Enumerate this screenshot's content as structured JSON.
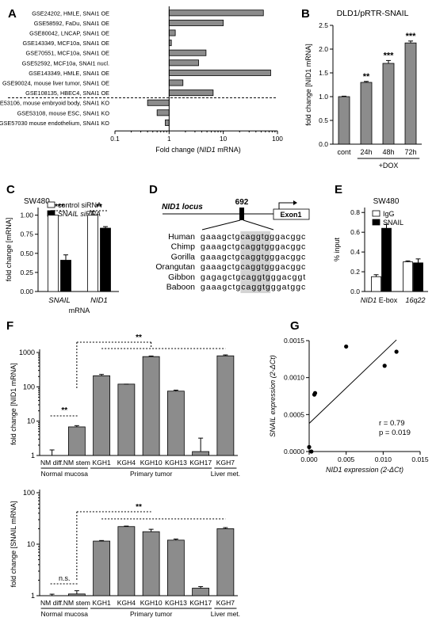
{
  "colors": {
    "gray_bar": "#8c8c8c",
    "black_bar": "#000000",
    "white_bar": "#ffffff",
    "highlight": "#d4d4d4"
  },
  "chart_data": [
    {
      "panel": "A",
      "type": "bar",
      "orientation": "horizontal",
      "scale": "log",
      "categories": [
        "GSE24202, HMLE, SNAI1 OE",
        "GSE58592, FaDu, SNAI1 OE",
        "GSE80042, LNCAP, SNAI1 OE",
        "GSE143349, MCF10a, SNAI1 OE",
        "GSE70551, MCF10a, SNAI1 OE",
        "GSE52592, MCF10a, SNAI1 nucl.",
        "GSE143349, HMLE, SNAI1 OE",
        "GSE90024, mouse liver tumor, SNAI1 OE",
        "GSE108135, HBEC4, SNAI1 OE",
        "GSE53106, mouse embryoid body, SNAI1 KO",
        "GSE53108, mouse ESC, SNAI1 KO",
        "GSE57030 mouse endothelium, SNAI1 KO"
      ],
      "values": [
        55,
        10,
        1.3,
        1.1,
        4.8,
        3.5,
        75,
        1.8,
        6.5,
        0.4,
        0.6,
        0.85
      ],
      "xlabel_pre": "Fold change (",
      "xlabel_italic": "NID1",
      "xlabel_post": " mRNA)",
      "xticks": [
        "0.1",
        "1",
        "10",
        "100"
      ],
      "xlim": [
        0.1,
        100
      ]
    },
    {
      "panel": "B",
      "type": "bar",
      "title": "DLD1/pRTR-SNAIL",
      "categories": [
        "cont",
        "24h",
        "48h",
        "72h"
      ],
      "values": [
        1.0,
        1.3,
        1.7,
        2.13
      ],
      "errors": [
        0.01,
        0.02,
        0.06,
        0.04
      ],
      "significance": [
        "",
        "**",
        "***",
        "***"
      ],
      "group_label": "+DOX",
      "ylabel": "fold change [NID1 mRNA]",
      "ylim": [
        0,
        2.5
      ],
      "yticks": [
        "0.0",
        "0.5",
        "1.0",
        "1.5",
        "2.0",
        "2.5"
      ]
    },
    {
      "panel": "C",
      "type": "bar",
      "title": "SW480",
      "categories": [
        "SNAIL",
        "NID1"
      ],
      "category_label": "mRNA",
      "series": [
        {
          "name": "control siRNA",
          "values": [
            1.0,
            1.0
          ],
          "errors": [
            0.06,
            0.05
          ]
        },
        {
          "name": "SNAIL siRNA",
          "values": [
            0.41,
            0.83
          ],
          "errors": [
            0.07,
            0.02
          ]
        }
      ],
      "significance": [
        "***",
        "**"
      ],
      "ylabel": "fold change [mRNA]",
      "ylim": [
        0,
        1.1
      ],
      "yticks": [
        "0.00",
        "0.25",
        "0.50",
        "0.75",
        "1.00"
      ]
    },
    {
      "panel": "E",
      "type": "bar",
      "title": "SW480",
      "categories": [
        "NID1 E-box",
        "16q22"
      ],
      "series": [
        {
          "name": "IgG",
          "values": [
            0.15,
            0.3
          ],
          "errors": [
            0.02,
            0.01
          ]
        },
        {
          "name": "SNAIL",
          "values": [
            0.64,
            0.29
          ],
          "errors": [
            0.04,
            0.04
          ]
        }
      ],
      "ylabel": "% input",
      "ylim": [
        0,
        0.85
      ],
      "yticks": [
        "0.0",
        "0.2",
        "0.4",
        "0.6",
        "0.8"
      ]
    },
    {
      "panel": "F-top",
      "type": "bar",
      "scale": "log",
      "categories": [
        "NM diff.",
        "NM stem",
        "KGH1",
        "KGH4",
        "KGH10",
        "KGH13",
        "KGH17",
        "KGH7"
      ],
      "values": [
        1.0,
        6.8,
        210,
        120,
        760,
        75,
        1.3,
        800
      ],
      "errors_up": [
        1.45,
        7.4,
        230,
        120,
        790,
        80,
        3.2,
        850
      ],
      "groups": [
        "Normal mucosa",
        "Primary tumor",
        "Liver met."
      ],
      "significance": [
        "**",
        "**"
      ],
      "ylabel": "fold change [NID1 mRNA]",
      "ylim": [
        1,
        1000
      ],
      "yticks": [
        "1",
        "10",
        "100",
        "1000"
      ]
    },
    {
      "panel": "F-bottom",
      "type": "bar",
      "scale": "log",
      "categories": [
        "NM diff.",
        "NM stem",
        "KGH1",
        "KGH4",
        "KGH10",
        "KGH13",
        "KGH17",
        "KGH7"
      ],
      "values": [
        1.0,
        1.08,
        11.5,
        22,
        17.5,
        12,
        1.4,
        20
      ],
      "errors_up": [
        1.07,
        1.25,
        11.8,
        22.5,
        19.5,
        12.6,
        1.5,
        21
      ],
      "groups": [
        "Normal mucosa",
        "Primary tumor",
        "Liver met."
      ],
      "significance": [
        "n.s.",
        "**"
      ],
      "ylabel": "fold change [SNAIL mRNA]",
      "ylim": [
        1,
        100
      ],
      "yticks": [
        "1",
        "10",
        "100"
      ]
    },
    {
      "panel": "G",
      "type": "scatter",
      "x": [
        0.0,
        0.0003,
        0.0007,
        0.0008,
        0.005,
        0.0102,
        0.0118
      ],
      "y": [
        6e-05,
        0.0,
        0.00077,
        0.00079,
        0.00142,
        0.00116,
        0.00135
      ],
      "fit_line": {
        "x": [
          0.0,
          0.0118
        ],
        "y": [
          0.00038,
          0.00151
        ]
      },
      "annotations": [
        "r = 0.79",
        "p = 0.019"
      ],
      "xlabel": "NID1 expression (2-ΔCt)",
      "ylabel": "SNAIL expression (2-ΔCt)",
      "xlim": [
        0,
        0.015
      ],
      "ylim": [
        0,
        0.0015
      ],
      "xticks": [
        "0.000",
        "0.005",
        "0.010",
        "0.015"
      ],
      "yticks": [
        "0.0000",
        "0.0005",
        "0.0010",
        "0.0015"
      ]
    }
  ],
  "panelD": {
    "locus_label": "NID1 locus",
    "position_label": "692",
    "exon_label": "Exon1",
    "sequences": [
      {
        "species": "Human",
        "seq": "gaaagctgcaggtgggacggc"
      },
      {
        "species": "Chimp",
        "seq": "gaaagctgcaggtgggacggc"
      },
      {
        "species": "Gorilla",
        "seq": "gaaagctgcaggtgggacggc"
      },
      {
        "species": "Orangutan",
        "seq": "gaaagctgcaggtgggacggc"
      },
      {
        "species": "Gibbon",
        "seq": "gagagctgcaggtgggacggt"
      },
      {
        "species": "Baboon",
        "seq": "gaaagctgcaggtgggatggc"
      }
    ]
  },
  "labels": {
    "A": "A",
    "B": "B",
    "C": "C",
    "D": "D",
    "E": "E",
    "F": "F",
    "G": "G"
  }
}
